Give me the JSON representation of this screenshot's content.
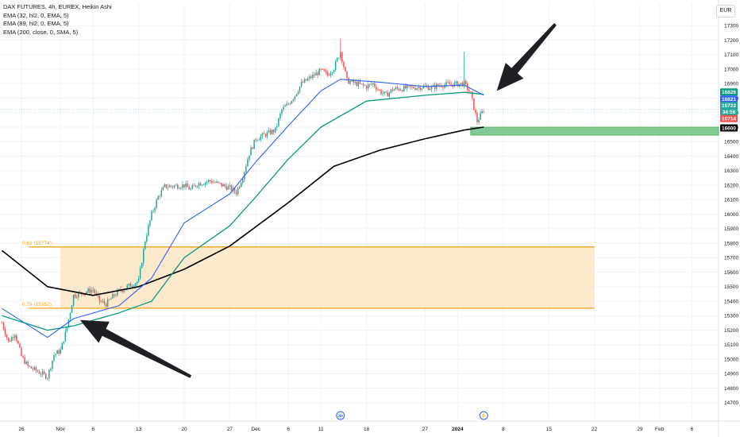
{
  "legend": {
    "title": "DAX FUTURES, 4h, EUREX, Heikin Ashi",
    "ema1": "EMA (32, hl2, 0, EMA, 5)",
    "ema2": "EMA (89, hl2, 0, EMA, 5)",
    "ema3": "EMA (200, close, 0, SMA, 5)"
  },
  "currency": "EUR",
  "colors": {
    "up": "#26a69a",
    "down": "#ef5350",
    "ema32": "#2962ff",
    "ema89": "#089981",
    "ema200": "#000000",
    "fib": "#f7a21b",
    "fib_fill": "#fde5c3",
    "support_fill": "#81c995",
    "support_border": "#4caf50",
    "grid": "#f0f3fa"
  },
  "chart_data": {
    "type": "candlestick",
    "ylim": [
      14650,
      17400
    ],
    "y_ticks": [
      14700,
      14800,
      14900,
      15000,
      15100,
      15200,
      15300,
      15400,
      15500,
      15600,
      15700,
      15800,
      15900,
      16000,
      16100,
      16200,
      16300,
      16400,
      16500,
      16600,
      16700,
      16800,
      16900,
      17000,
      17100,
      17200,
      17300
    ],
    "x_ticks": [
      "26",
      "Nov",
      "6",
      "13",
      "20",
      "27",
      "Dec",
      "6",
      "11",
      "18",
      "27",
      "2024",
      "8",
      "15",
      "22",
      "29",
      "Feb",
      "6"
    ],
    "x_tick_dates": [
      "2023-10-26",
      "2023-11-01",
      "2023-11-06",
      "2023-11-13",
      "2023-11-20",
      "2023-11-27",
      "2023-12-01",
      "2023-12-06",
      "2023-12-11",
      "2023-12-18",
      "2023-12-27",
      "2024-01-01",
      "2024-01-08",
      "2024-01-15",
      "2024-01-22",
      "2024-01-29",
      "2024-02-01",
      "2024-02-06"
    ],
    "price_labels": [
      {
        "text": "16826",
        "value": 16826,
        "color": "#089981"
      },
      {
        "text": "16821",
        "value": 16821,
        "color": "#2962ff"
      },
      {
        "text": "16722",
        "value": 16722,
        "color": "#26a69a"
      },
      {
        "text": "34:56",
        "value": 16700,
        "color": "#26a69a"
      },
      {
        "text": "16714",
        "value": 16714,
        "color": "#ef5350"
      },
      {
        "text": "16600",
        "value": 16600,
        "color": "#000000"
      }
    ],
    "fib_levels": [
      {
        "label": "0.61 (15774)",
        "value": 15774,
        "start": "2023-11-01",
        "end": "2024-01-22"
      },
      {
        "label": "0.79 (15352)",
        "value": 15352,
        "start": "2023-11-01",
        "end": "2024-01-22"
      }
    ],
    "support_zone": {
      "low": 16545,
      "high": 16600,
      "start": "2024-01-03"
    },
    "markers": [
      {
        "symbol": "≫",
        "date": "2023-12-14"
      },
      {
        "symbol": "⚡",
        "date": "2024-01-05"
      }
    ],
    "arrows": [
      {
        "name": "arrow-down-left",
        "tip_date": "2024-01-07",
        "tip_value": 16850,
        "tail_date": "2024-01-16",
        "tail_value": 17310
      },
      {
        "name": "arrow-up-left",
        "tip_date": "2023-11-04",
        "tip_value": 15270,
        "tail_date": "2023-11-21",
        "tail_value": 14880
      }
    ],
    "price_path": [
      [
        "2023-10-23",
        15250
      ],
      [
        "2023-10-24",
        15120
      ],
      [
        "2023-10-25",
        15180
      ],
      [
        "2023-10-26",
        15020
      ],
      [
        "2023-10-27",
        14950
      ],
      [
        "2023-10-30",
        14880
      ],
      [
        "2023-10-31",
        15030
      ],
      [
        "2023-11-01",
        15060
      ],
      [
        "2023-11-02",
        15220
      ],
      [
        "2023-11-03",
        15440
      ],
      [
        "2023-11-06",
        15480
      ],
      [
        "2023-11-07",
        15400
      ],
      [
        "2023-11-08",
        15380
      ],
      [
        "2023-11-09",
        15430
      ],
      [
        "2023-11-10",
        15470
      ],
      [
        "2023-11-13",
        15540
      ],
      [
        "2023-11-14",
        15820
      ],
      [
        "2023-11-15",
        16000
      ],
      [
        "2023-11-16",
        16120
      ],
      [
        "2023-11-17",
        16190
      ],
      [
        "2023-11-20",
        16200
      ],
      [
        "2023-11-21",
        16170
      ],
      [
        "2023-11-22",
        16210
      ],
      [
        "2023-11-23",
        16220
      ],
      [
        "2023-11-24",
        16230
      ],
      [
        "2023-11-27",
        16180
      ],
      [
        "2023-11-28",
        16150
      ],
      [
        "2023-11-29",
        16260
      ],
      [
        "2023-11-30",
        16420
      ],
      [
        "2023-12-01",
        16520
      ],
      [
        "2023-12-04",
        16580
      ],
      [
        "2023-12-05",
        16720
      ],
      [
        "2023-12-06",
        16760
      ],
      [
        "2023-12-07",
        16820
      ],
      [
        "2023-12-08",
        16900
      ],
      [
        "2023-12-11",
        16990
      ],
      [
        "2023-12-12",
        16960
      ],
      [
        "2023-12-13",
        17010
      ],
      [
        "2023-12-14",
        17120
      ],
      [
        "2023-12-15",
        16920
      ],
      [
        "2023-12-18",
        16880
      ],
      [
        "2023-12-19",
        16900
      ],
      [
        "2023-12-20",
        16850
      ],
      [
        "2023-12-21",
        16820
      ],
      [
        "2023-12-22",
        16860
      ],
      [
        "2023-12-27",
        16880
      ],
      [
        "2023-12-28",
        16870
      ],
      [
        "2023-12-29",
        16890
      ],
      [
        "2024-01-02",
        16900
      ],
      [
        "2024-01-03",
        16830
      ],
      [
        "2024-01-04",
        16640
      ],
      [
        "2024-01-05",
        16720
      ]
    ],
    "ema32_path": [
      [
        "2023-10-23",
        15350
      ],
      [
        "2023-10-30",
        15150
      ],
      [
        "2023-11-03",
        15280
      ],
      [
        "2023-11-10",
        15370
      ],
      [
        "2023-11-15",
        15560
      ],
      [
        "2023-11-20",
        15940
      ],
      [
        "2023-11-27",
        16140
      ],
      [
        "2023-12-01",
        16360
      ],
      [
        "2023-12-06",
        16610
      ],
      [
        "2023-12-11",
        16850
      ],
      [
        "2023-12-14",
        16930
      ],
      [
        "2023-12-20",
        16910
      ],
      [
        "2023-12-27",
        16880
      ],
      [
        "2024-01-02",
        16890
      ],
      [
        "2024-01-05",
        16821
      ]
    ],
    "ema89_path": [
      [
        "2023-10-23",
        15300
      ],
      [
        "2023-10-30",
        15200
      ],
      [
        "2023-11-03",
        15230
      ],
      [
        "2023-11-10",
        15320
      ],
      [
        "2023-11-15",
        15400
      ],
      [
        "2023-11-20",
        15700
      ],
      [
        "2023-11-27",
        15920
      ],
      [
        "2023-12-01",
        16120
      ],
      [
        "2023-12-06",
        16380
      ],
      [
        "2023-12-11",
        16600
      ],
      [
        "2023-12-18",
        16780
      ],
      [
        "2023-12-27",
        16820
      ],
      [
        "2024-01-02",
        16840
      ],
      [
        "2024-01-05",
        16826
      ]
    ],
    "ema200_path": [
      [
        "2023-10-23",
        15750
      ],
      [
        "2023-10-30",
        15500
      ],
      [
        "2023-11-06",
        15440
      ],
      [
        "2023-11-13",
        15500
      ],
      [
        "2023-11-20",
        15620
      ],
      [
        "2023-11-27",
        15780
      ],
      [
        "2023-12-06",
        16080
      ],
      [
        "2023-12-13",
        16330
      ],
      [
        "2023-12-20",
        16440
      ],
      [
        "2023-12-27",
        16520
      ],
      [
        "2024-01-02",
        16580
      ],
      [
        "2024-01-05",
        16600
      ]
    ]
  }
}
